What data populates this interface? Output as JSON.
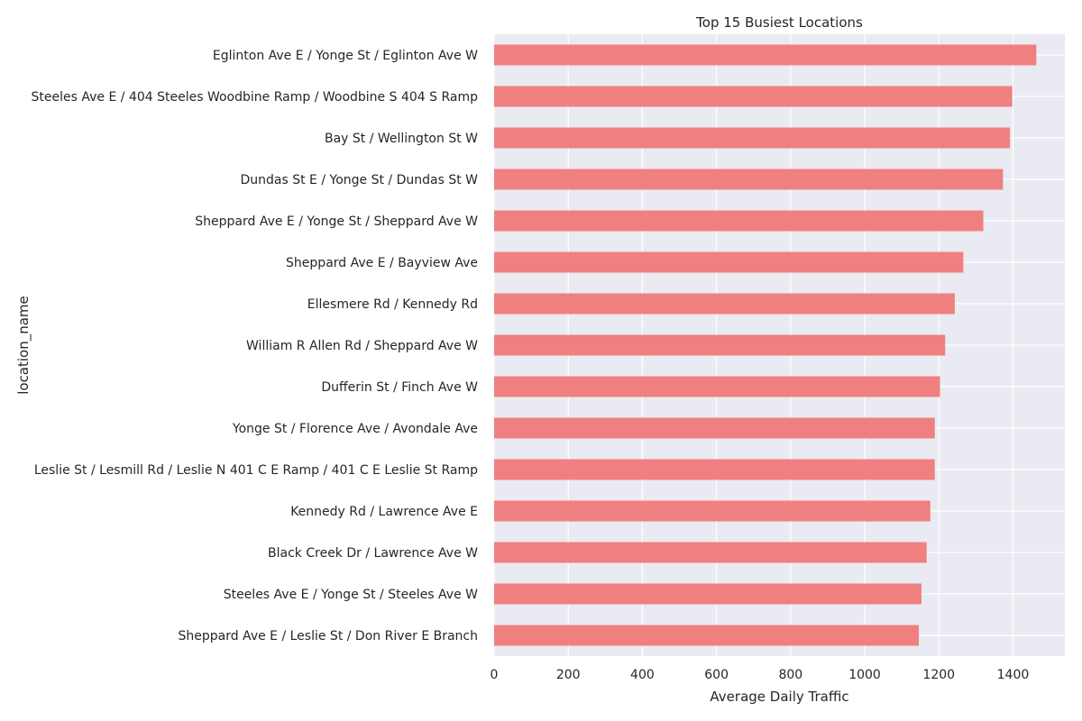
{
  "chart_data": {
    "type": "bar",
    "orientation": "horizontal",
    "title": "Top 15 Busiest Locations",
    "xlabel": "Average Daily Traffic",
    "ylabel": "location_name",
    "xlim": [
      0,
      1540
    ],
    "xticks": [
      0,
      200,
      400,
      600,
      800,
      1000,
      1200,
      1400
    ],
    "grid": true,
    "bar_color": "#f08080",
    "background_color": "#eaeaf2",
    "categories": [
      "Eglinton Ave E / Yonge St / Eglinton Ave W",
      "Steeles Ave E / 404 Steeles Woodbine Ramp / Woodbine S 404 S Ramp",
      "Bay St / Wellington St W",
      "Dundas St E / Yonge St / Dundas St W",
      "Sheppard Ave E / Yonge St / Sheppard Ave W",
      "Sheppard Ave E / Bayview Ave",
      "Ellesmere Rd / Kennedy Rd",
      "William R Allen Rd / Sheppard Ave W",
      "Dufferin St / Finch Ave W",
      "Yonge St / Florence Ave / Avondale Ave",
      "Leslie St / Lesmill Rd / Leslie N 401 C E Ramp / 401 C E Leslie St Ramp",
      "Kennedy Rd / Lawrence Ave E",
      "Black Creek Dr / Lawrence Ave W",
      "Steeles Ave E / Yonge St / Steeles Ave W",
      "Sheppard Ave E / Leslie St / Don River E Branch"
    ],
    "values": [
      1463,
      1398,
      1392,
      1373,
      1320,
      1266,
      1243,
      1217,
      1203,
      1189,
      1189,
      1177,
      1167,
      1153,
      1146
    ]
  }
}
